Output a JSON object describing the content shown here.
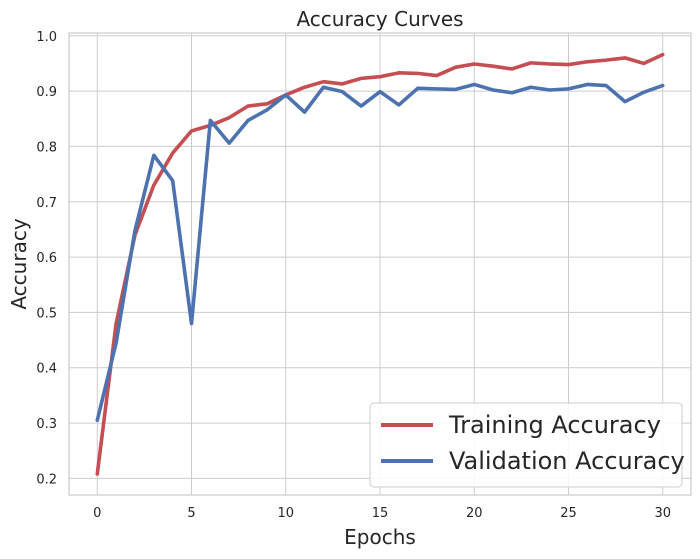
{
  "chart_data": {
    "type": "line",
    "title": "Accuracy Curves",
    "xlabel": "Epochs",
    "ylabel": "Accuracy",
    "xlim": [
      -1.5,
      31.5
    ],
    "ylim": [
      0.17,
      1.005
    ],
    "xticks": [
      0,
      5,
      10,
      15,
      20,
      25,
      30
    ],
    "yticks": [
      0.2,
      0.3,
      0.4,
      0.5,
      0.6,
      0.7,
      0.8,
      0.9,
      1.0
    ],
    "grid": true,
    "legend_position": "bottom-right",
    "x": [
      0,
      1,
      2,
      3,
      4,
      5,
      6,
      7,
      8,
      9,
      10,
      11,
      12,
      13,
      14,
      15,
      16,
      17,
      18,
      19,
      20,
      21,
      22,
      23,
      24,
      25,
      26,
      27,
      28,
      29,
      30
    ],
    "series": [
      {
        "name": "Training Accuracy",
        "color": "#c44e52",
        "values": [
          0.208,
          0.48,
          0.64,
          0.73,
          0.788,
          0.828,
          0.838,
          0.852,
          0.873,
          0.877,
          0.893,
          0.907,
          0.917,
          0.913,
          0.923,
          0.926,
          0.933,
          0.932,
          0.928,
          0.943,
          0.949,
          0.945,
          0.94,
          0.951,
          0.949,
          0.948,
          0.953,
          0.956,
          0.96,
          0.95,
          0.966
        ]
      },
      {
        "name": "Validation Accuracy",
        "color": "#4c72b0",
        "values": [
          0.305,
          0.445,
          0.648,
          0.784,
          0.738,
          0.48,
          0.847,
          0.806,
          0.847,
          0.866,
          0.893,
          0.862,
          0.907,
          0.899,
          0.873,
          0.899,
          0.875,
          0.905,
          0.904,
          0.903,
          0.912,
          0.902,
          0.897,
          0.907,
          0.902,
          0.904,
          0.912,
          0.91,
          0.881,
          0.898,
          0.91
        ]
      }
    ]
  }
}
